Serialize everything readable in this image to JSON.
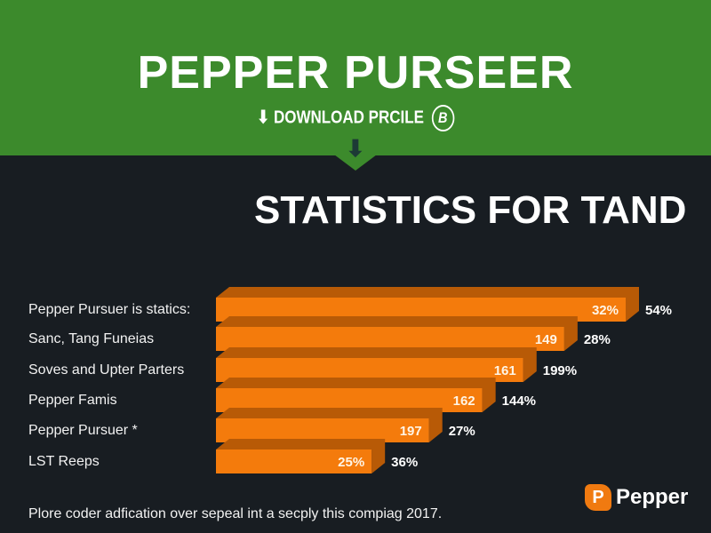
{
  "header": {
    "title": "PEPPER PURSEER",
    "download_label": "DOWNLOAD PRCILE",
    "badge_letter": "B",
    "download_icon": "arrow-down-icon"
  },
  "colors": {
    "banner": "#3c8a2c",
    "bar": "#f47b0c",
    "bar_top": "#b85a06",
    "background": "#181d22"
  },
  "chart_data": {
    "type": "bar",
    "orientation": "horizontal",
    "title": "STATISTICS FOR TAND",
    "categories": [
      "Pepper Pursuer is statics:",
      "Sanc, Tang Funeias",
      "Soves and Upter Parters",
      "Pepper Famis",
      "Pepper Pursuer *",
      "LST Reeps"
    ],
    "relative_length_percent": [
      100,
      85,
      75,
      65,
      52,
      38
    ],
    "inner_labels": [
      "32%",
      "149",
      "161",
      "162",
      "197",
      "25%"
    ],
    "outer_labels": [
      "54%",
      "28%",
      "199%",
      "144%",
      "27%",
      "36%"
    ]
  },
  "footer": {
    "note": "Plore coder adfication over sepeal int a secply this compiag 2017."
  },
  "logo": {
    "letter": "P",
    "name": "Pepper"
  }
}
